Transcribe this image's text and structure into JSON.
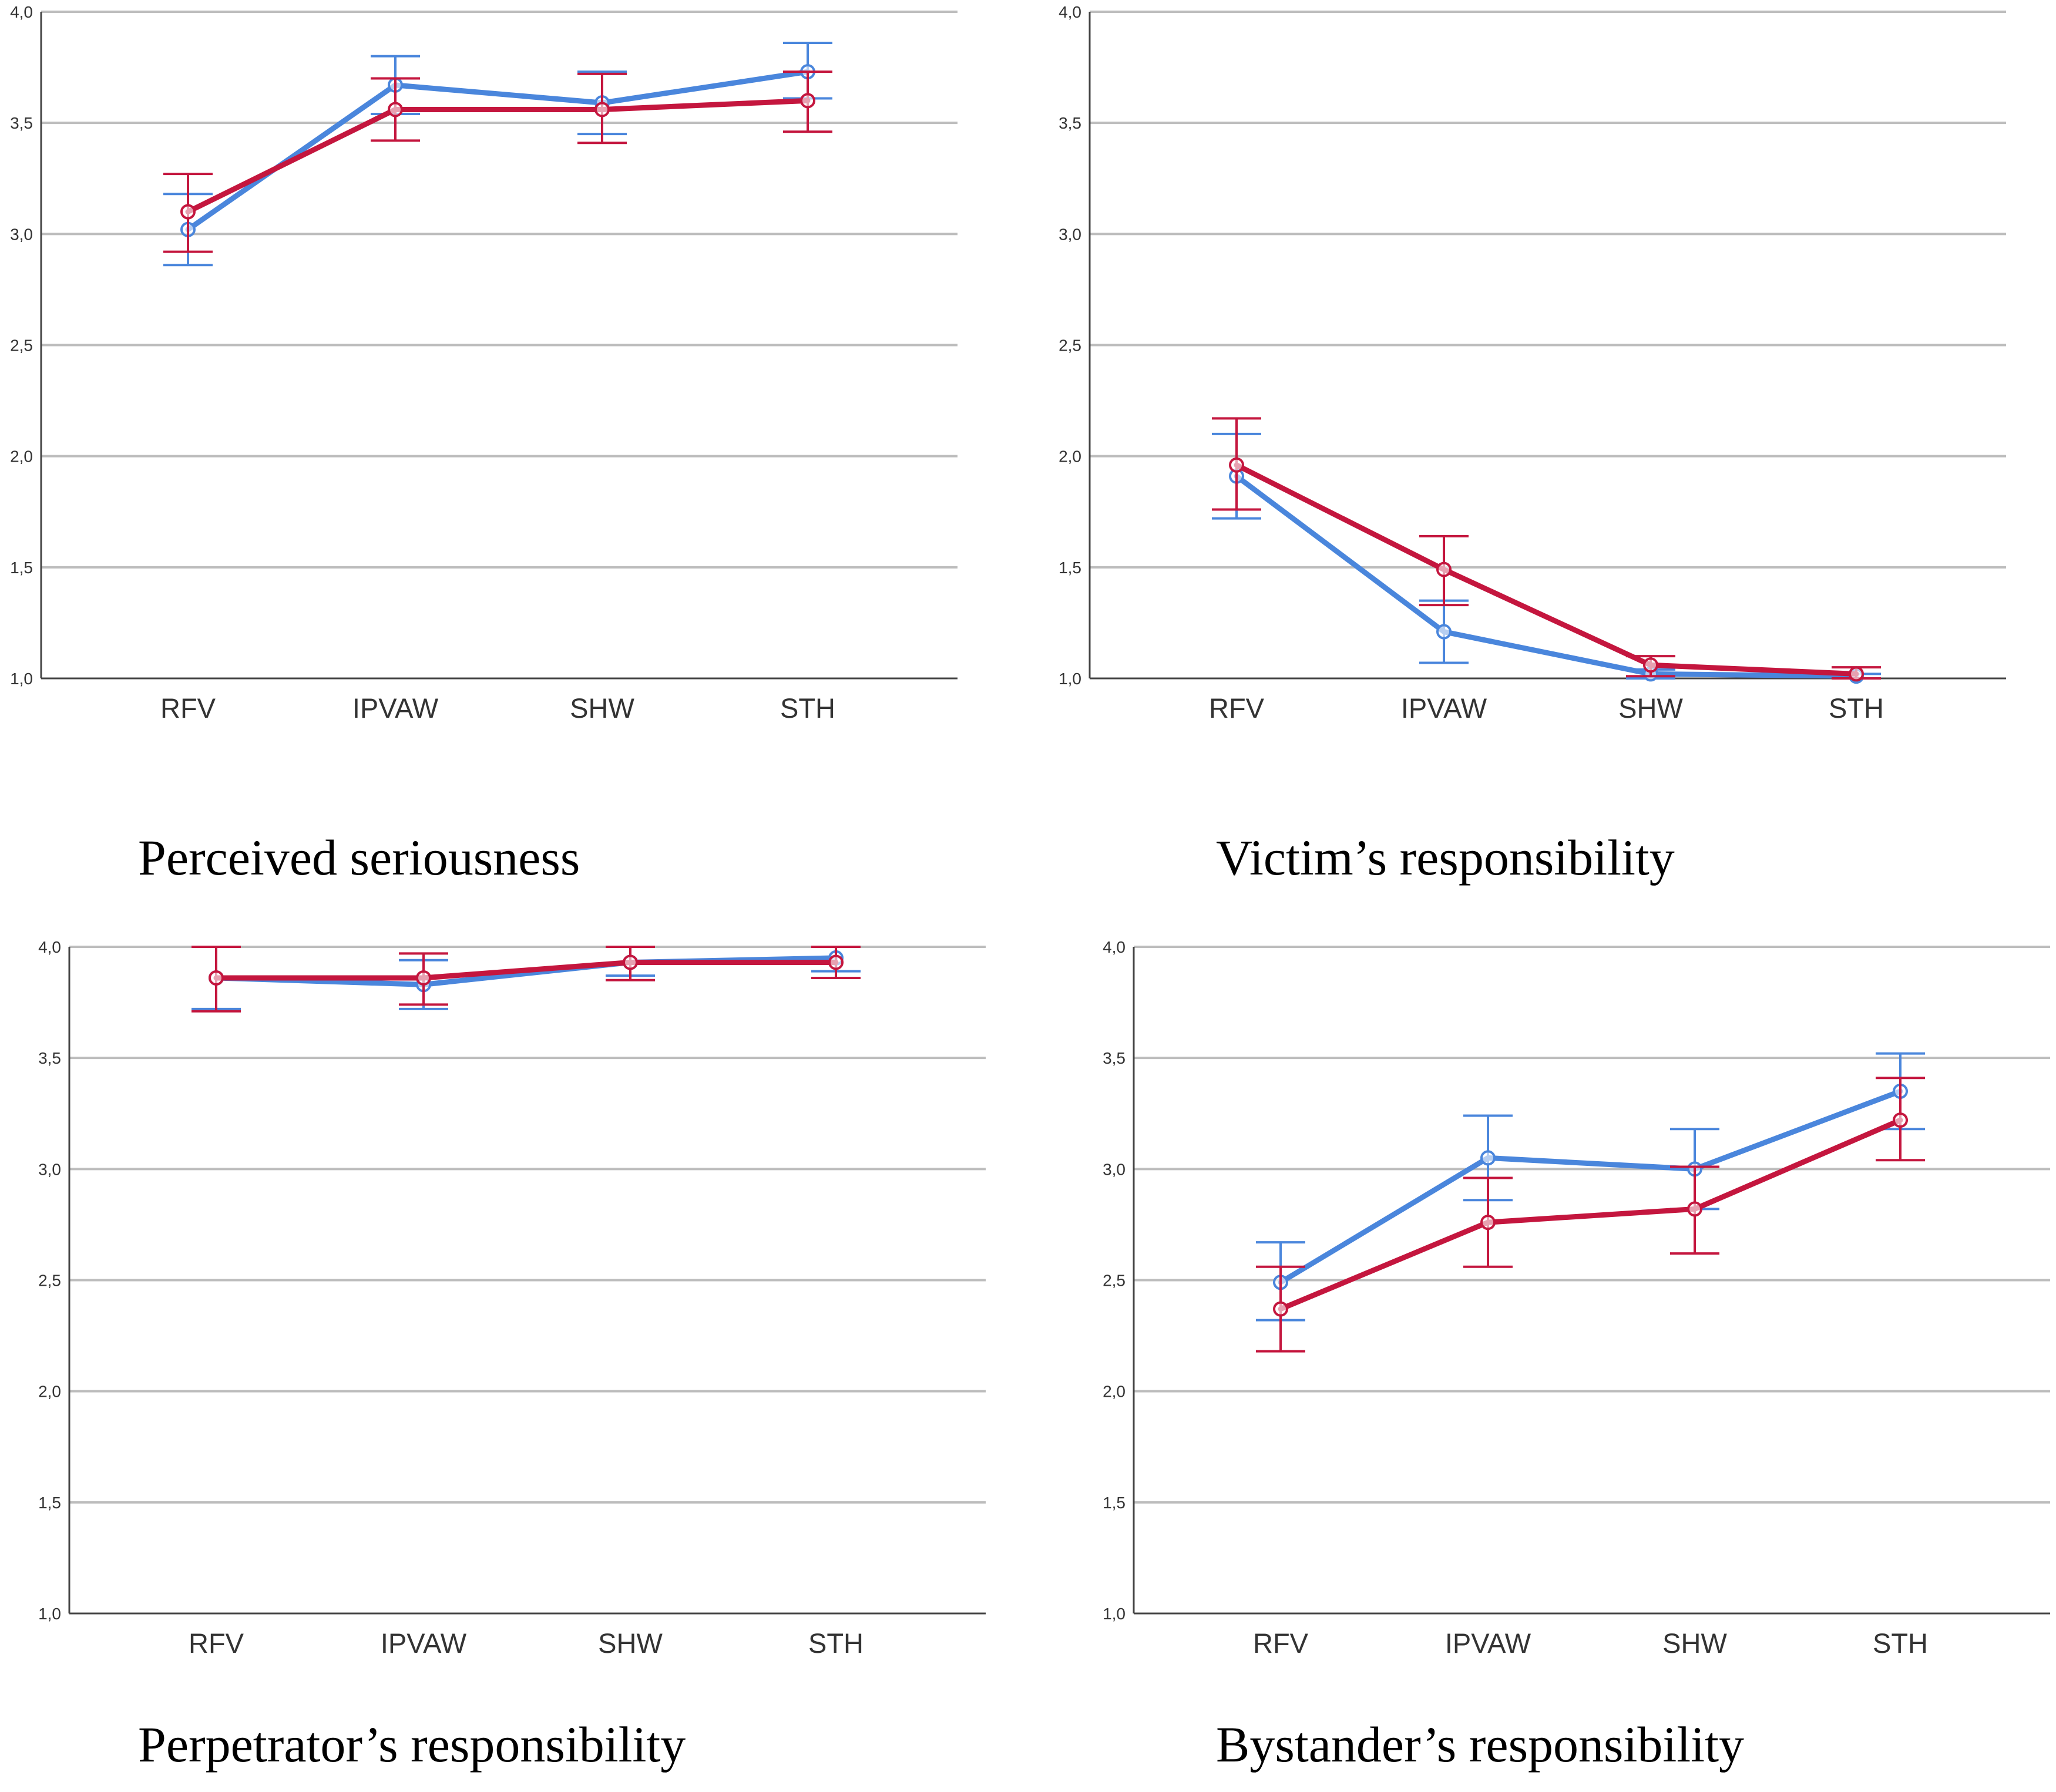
{
  "colors": {
    "blue": "#4A86DC",
    "red": "#C4163E",
    "grid": "#BDBDBD",
    "axis": "#444444"
  },
  "chart_data": [
    {
      "type": "line",
      "title": "Perceived seriousness",
      "categories": [
        "RFV",
        "IPVAW",
        "SHW",
        "STH"
      ],
      "ylim": [
        1.0,
        4.0
      ],
      "yticks": [
        "1,0",
        "1,5",
        "2,0",
        "2,5",
        "3,0",
        "3,5",
        "4,0"
      ],
      "error_bars": true,
      "series": [
        {
          "name": "blue",
          "values": [
            3.02,
            3.67,
            3.59,
            3.73
          ],
          "lower": [
            2.86,
            3.54,
            3.45,
            3.61
          ],
          "upper": [
            3.18,
            3.8,
            3.73,
            3.86
          ]
        },
        {
          "name": "red",
          "values": [
            3.1,
            3.56,
            3.56,
            3.6
          ],
          "lower": [
            2.92,
            3.42,
            3.41,
            3.46
          ],
          "upper": [
            3.27,
            3.7,
            3.72,
            3.73
          ]
        }
      ]
    },
    {
      "type": "line",
      "title": "Victim’s responsibility",
      "categories": [
        "RFV",
        "IPVAW",
        "SHW",
        "STH"
      ],
      "ylim": [
        1.0,
        4.0
      ],
      "yticks": [
        "1,0",
        "1,5",
        "2,0",
        "2,5",
        "3,0",
        "3,5",
        "4,0"
      ],
      "error_bars": true,
      "series": [
        {
          "name": "blue",
          "values": [
            1.91,
            1.21,
            1.02,
            1.01
          ],
          "lower": [
            1.72,
            1.07,
            1.0,
            1.0
          ],
          "upper": [
            2.1,
            1.35,
            1.04,
            1.02
          ]
        },
        {
          "name": "red",
          "values": [
            1.96,
            1.49,
            1.06,
            1.02
          ],
          "lower": [
            1.76,
            1.33,
            1.01,
            1.0
          ],
          "upper": [
            2.17,
            1.64,
            1.1,
            1.05
          ]
        }
      ]
    },
    {
      "type": "line",
      "title": "Perpetrator’s responsibility",
      "categories": [
        "RFV",
        "IPVAW",
        "SHW",
        "STH"
      ],
      "ylim": [
        1.0,
        4.0
      ],
      "yticks": [
        "1,0",
        "1,5",
        "2,0",
        "2,5",
        "3,0",
        "3,5",
        "4,0"
      ],
      "error_bars": true,
      "series": [
        {
          "name": "blue",
          "values": [
            3.86,
            3.83,
            3.93,
            3.95
          ],
          "lower": [
            3.72,
            3.72,
            3.87,
            3.89
          ],
          "upper": [
            4.0,
            3.94,
            4.0,
            4.0
          ]
        },
        {
          "name": "red",
          "values": [
            3.86,
            3.86,
            3.93,
            3.93
          ],
          "lower": [
            3.71,
            3.74,
            3.85,
            3.86
          ],
          "upper": [
            4.0,
            3.97,
            4.0,
            4.0
          ]
        }
      ]
    },
    {
      "type": "line",
      "title": "Bystander’s responsibility",
      "categories": [
        "RFV",
        "IPVAW",
        "SHW",
        "STH"
      ],
      "ylim": [
        1.0,
        4.0
      ],
      "yticks": [
        "1,0",
        "1,5",
        "2,0",
        "2,5",
        "3,0",
        "3,5",
        "4,0"
      ],
      "error_bars": true,
      "series": [
        {
          "name": "blue",
          "values": [
            2.49,
            3.05,
            3.0,
            3.35
          ],
          "lower": [
            2.32,
            2.86,
            2.82,
            3.18
          ],
          "upper": [
            2.67,
            3.24,
            3.18,
            3.52
          ]
        },
        {
          "name": "red",
          "values": [
            2.37,
            2.76,
            2.82,
            3.22
          ],
          "lower": [
            2.18,
            2.56,
            2.62,
            3.04
          ],
          "upper": [
            2.56,
            2.96,
            3.01,
            3.41
          ]
        }
      ]
    }
  ]
}
